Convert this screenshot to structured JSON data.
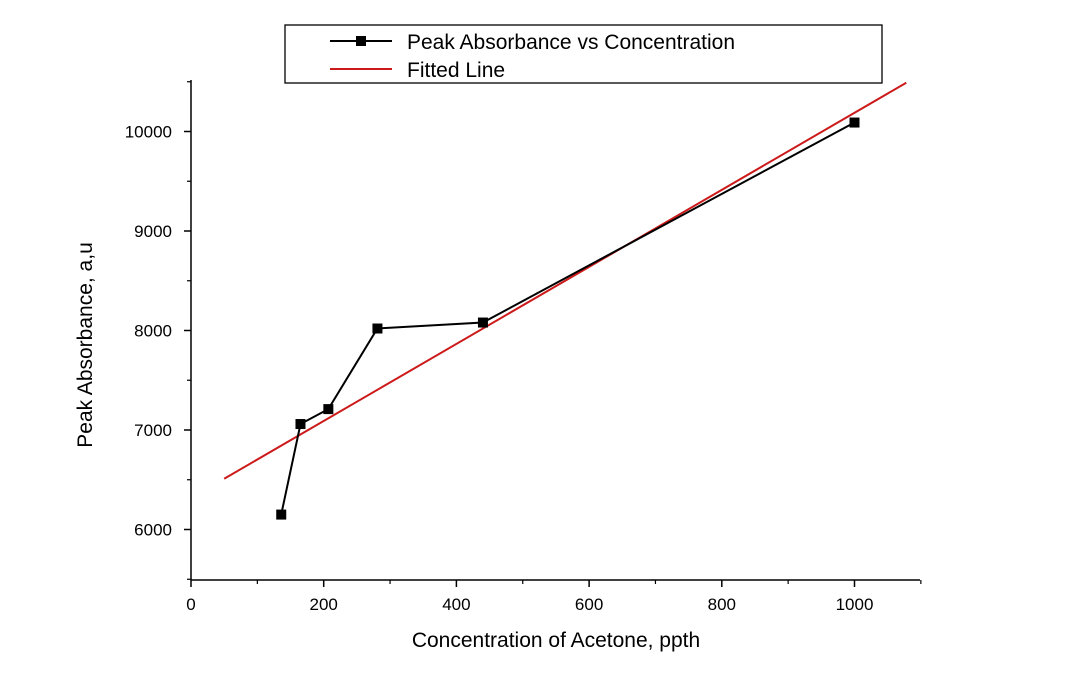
{
  "chart_data": {
    "type": "line",
    "title": "",
    "xlabel": "Concentration of Acetone, ppth",
    "ylabel": "Peak Absorbance, a,u",
    "xlim": [
      0,
      1100
    ],
    "ylim": [
      5500,
      10500
    ],
    "x_ticks": [
      0,
      200,
      400,
      600,
      800,
      1000
    ],
    "y_ticks": [
      6000,
      7000,
      8000,
      9000,
      10000
    ],
    "x_tick_labels": [
      "0",
      "200",
      "400",
      "600",
      "800",
      "1000"
    ],
    "y_tick_labels": [
      "6000",
      "7000",
      "8000",
      "9000",
      "10000"
    ],
    "grid": false,
    "legend_position": "top",
    "series": [
      {
        "name": "Peak Absorbance vs Concentration",
        "color": "#000000",
        "marker": "square",
        "x": [
          136,
          165,
          207,
          281,
          440,
          1000
        ],
        "y": [
          6150,
          7060,
          7210,
          8020,
          8080,
          10090
        ]
      },
      {
        "name": "Fitted Line",
        "color": "#cc1a1a",
        "marker": "none",
        "x": [
          50,
          1078
        ],
        "y": [
          6510,
          10490
        ]
      }
    ]
  }
}
